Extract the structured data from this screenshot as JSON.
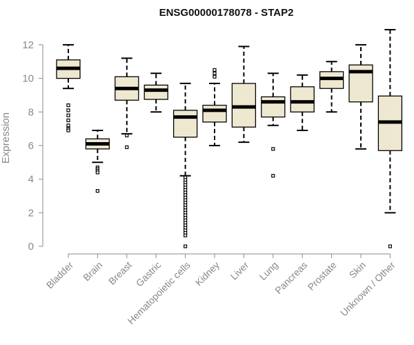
{
  "chart_data": {
    "type": "box",
    "title": "ENSG00000178078 - STAP2",
    "xlabel": "",
    "ylabel": "Expression",
    "ylim": [
      0,
      12.9
    ],
    "yticks": [
      0,
      2,
      4,
      6,
      8,
      10,
      12
    ],
    "box_fill": "#efe8d1",
    "box_stroke": "#000000",
    "axis_color": "#888888",
    "categories": [
      "Bladder",
      "Brain",
      "Breast",
      "Gastric",
      "Hematopoietic cells",
      "Kidney",
      "Liver",
      "Lung",
      "Pancreas",
      "Prostate",
      "Skin",
      "Unknown / Other"
    ],
    "boxes": [
      {
        "whisker_low": 9.4,
        "q1": 10.0,
        "median": 10.6,
        "q3": 11.1,
        "whisker_high": 12.0,
        "outliers": [
          8.4,
          8.1,
          7.8,
          7.5,
          7.2,
          7.0,
          6.9
        ]
      },
      {
        "whisker_low": 5.0,
        "q1": 5.8,
        "median": 6.1,
        "q3": 6.4,
        "whisker_high": 6.9,
        "outliers": [
          4.7,
          4.6,
          4.5,
          4.4,
          3.3
        ]
      },
      {
        "whisker_low": 6.7,
        "q1": 8.7,
        "median": 9.4,
        "q3": 10.1,
        "whisker_high": 11.2,
        "outliers": [
          6.6,
          5.9
        ]
      },
      {
        "whisker_low": 8.0,
        "q1": 8.75,
        "median": 9.3,
        "q3": 9.6,
        "whisker_high": 10.3,
        "outliers": []
      },
      {
        "whisker_low": 4.2,
        "q1": 6.5,
        "median": 7.7,
        "q3": 8.1,
        "whisker_high": 9.7,
        "outliers": [
          4.1,
          3.95,
          3.8,
          3.65,
          3.5,
          3.35,
          3.2,
          3.05,
          2.9,
          2.75,
          2.6,
          2.45,
          2.3,
          2.15,
          2.0,
          1.85,
          1.7,
          1.55,
          1.4,
          1.25,
          1.1,
          0.95,
          0.8,
          0.65,
          0.0
        ]
      },
      {
        "whisker_low": 6.0,
        "q1": 7.4,
        "median": 8.1,
        "q3": 8.4,
        "whisker_high": 9.7,
        "outliers": [
          10.5,
          10.3,
          10.1
        ]
      },
      {
        "whisker_low": 6.2,
        "q1": 7.1,
        "median": 8.3,
        "q3": 9.7,
        "whisker_high": 11.9,
        "outliers": []
      },
      {
        "whisker_low": 7.2,
        "q1": 7.7,
        "median": 8.6,
        "q3": 8.9,
        "whisker_high": 10.3,
        "outliers": [
          5.8,
          4.2
        ]
      },
      {
        "whisker_low": 6.9,
        "q1": 8.0,
        "median": 8.6,
        "q3": 9.5,
        "whisker_high": 10.2,
        "outliers": []
      },
      {
        "whisker_low": 8.0,
        "q1": 9.4,
        "median": 10.0,
        "q3": 10.4,
        "whisker_high": 11.0,
        "outliers": []
      },
      {
        "whisker_low": 5.8,
        "q1": 8.6,
        "median": 10.4,
        "q3": 10.8,
        "whisker_high": 12.0,
        "outliers": []
      },
      {
        "whisker_low": 2.0,
        "q1": 5.7,
        "median": 7.4,
        "q3": 8.95,
        "whisker_high": 12.9,
        "outliers": [
          0.0
        ]
      }
    ]
  }
}
